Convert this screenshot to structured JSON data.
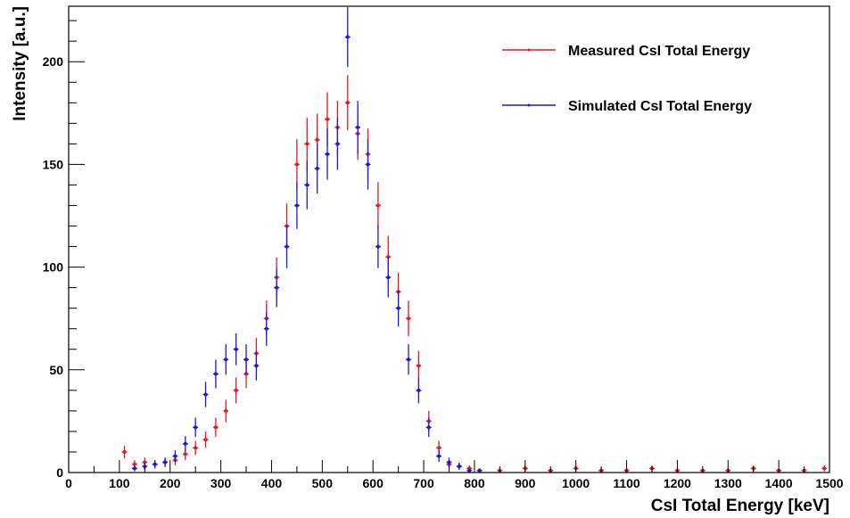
{
  "chart_data": {
    "type": "scatter",
    "title": "",
    "xlabel": "CsI Total Energy [keV]",
    "ylabel": "Intensity [a.u.]",
    "xlim": [
      0,
      1500
    ],
    "ylim": [
      0,
      227
    ],
    "x_ticks": [
      0,
      100,
      200,
      300,
      400,
      500,
      600,
      700,
      800,
      900,
      1000,
      1100,
      1200,
      1300,
      1400,
      1500
    ],
    "y_ticks": [
      0,
      50,
      100,
      150,
      200
    ],
    "grid": false,
    "legend_position": "top-right",
    "error_bars": true,
    "series": [
      {
        "name": "Measured CsI Total Energy",
        "color": "#e8191d",
        "x": [
          110,
          130,
          150,
          170,
          190,
          210,
          230,
          250,
          270,
          290,
          310,
          330,
          350,
          370,
          390,
          410,
          430,
          450,
          470,
          490,
          510,
          530,
          550,
          570,
          590,
          610,
          630,
          650,
          670,
          690,
          710,
          730,
          750,
          770,
          790,
          810,
          850,
          900,
          950,
          1000,
          1050,
          1100,
          1150,
          1200,
          1250,
          1300,
          1350,
          1400,
          1450,
          1490
        ],
        "y": [
          10,
          4,
          5,
          4,
          5,
          6,
          9,
          12,
          16,
          22,
          30,
          40,
          48,
          58,
          75,
          95,
          120,
          150,
          160,
          162,
          172,
          168,
          180,
          165,
          155,
          130,
          105,
          88,
          75,
          52,
          25,
          12,
          4,
          3,
          2,
          1,
          1,
          2,
          1,
          2,
          1,
          1,
          2,
          1,
          1,
          1,
          2,
          1,
          1,
          2
        ]
      },
      {
        "name": "Simulated CsI Total Energy",
        "color": "#1a1ad8",
        "x": [
          130,
          150,
          170,
          190,
          210,
          230,
          250,
          270,
          290,
          310,
          330,
          350,
          370,
          390,
          410,
          430,
          450,
          470,
          490,
          510,
          530,
          550,
          570,
          590,
          610,
          630,
          650,
          670,
          690,
          710,
          730,
          750,
          770,
          790,
          810
        ],
        "y": [
          2,
          3,
          4,
          5,
          8,
          14,
          22,
          38,
          48,
          55,
          60,
          55,
          52,
          70,
          90,
          110,
          130,
          140,
          148,
          155,
          160,
          212,
          168,
          150,
          110,
          95,
          80,
          55,
          40,
          22,
          8,
          5,
          3,
          1,
          1
        ]
      }
    ]
  }
}
